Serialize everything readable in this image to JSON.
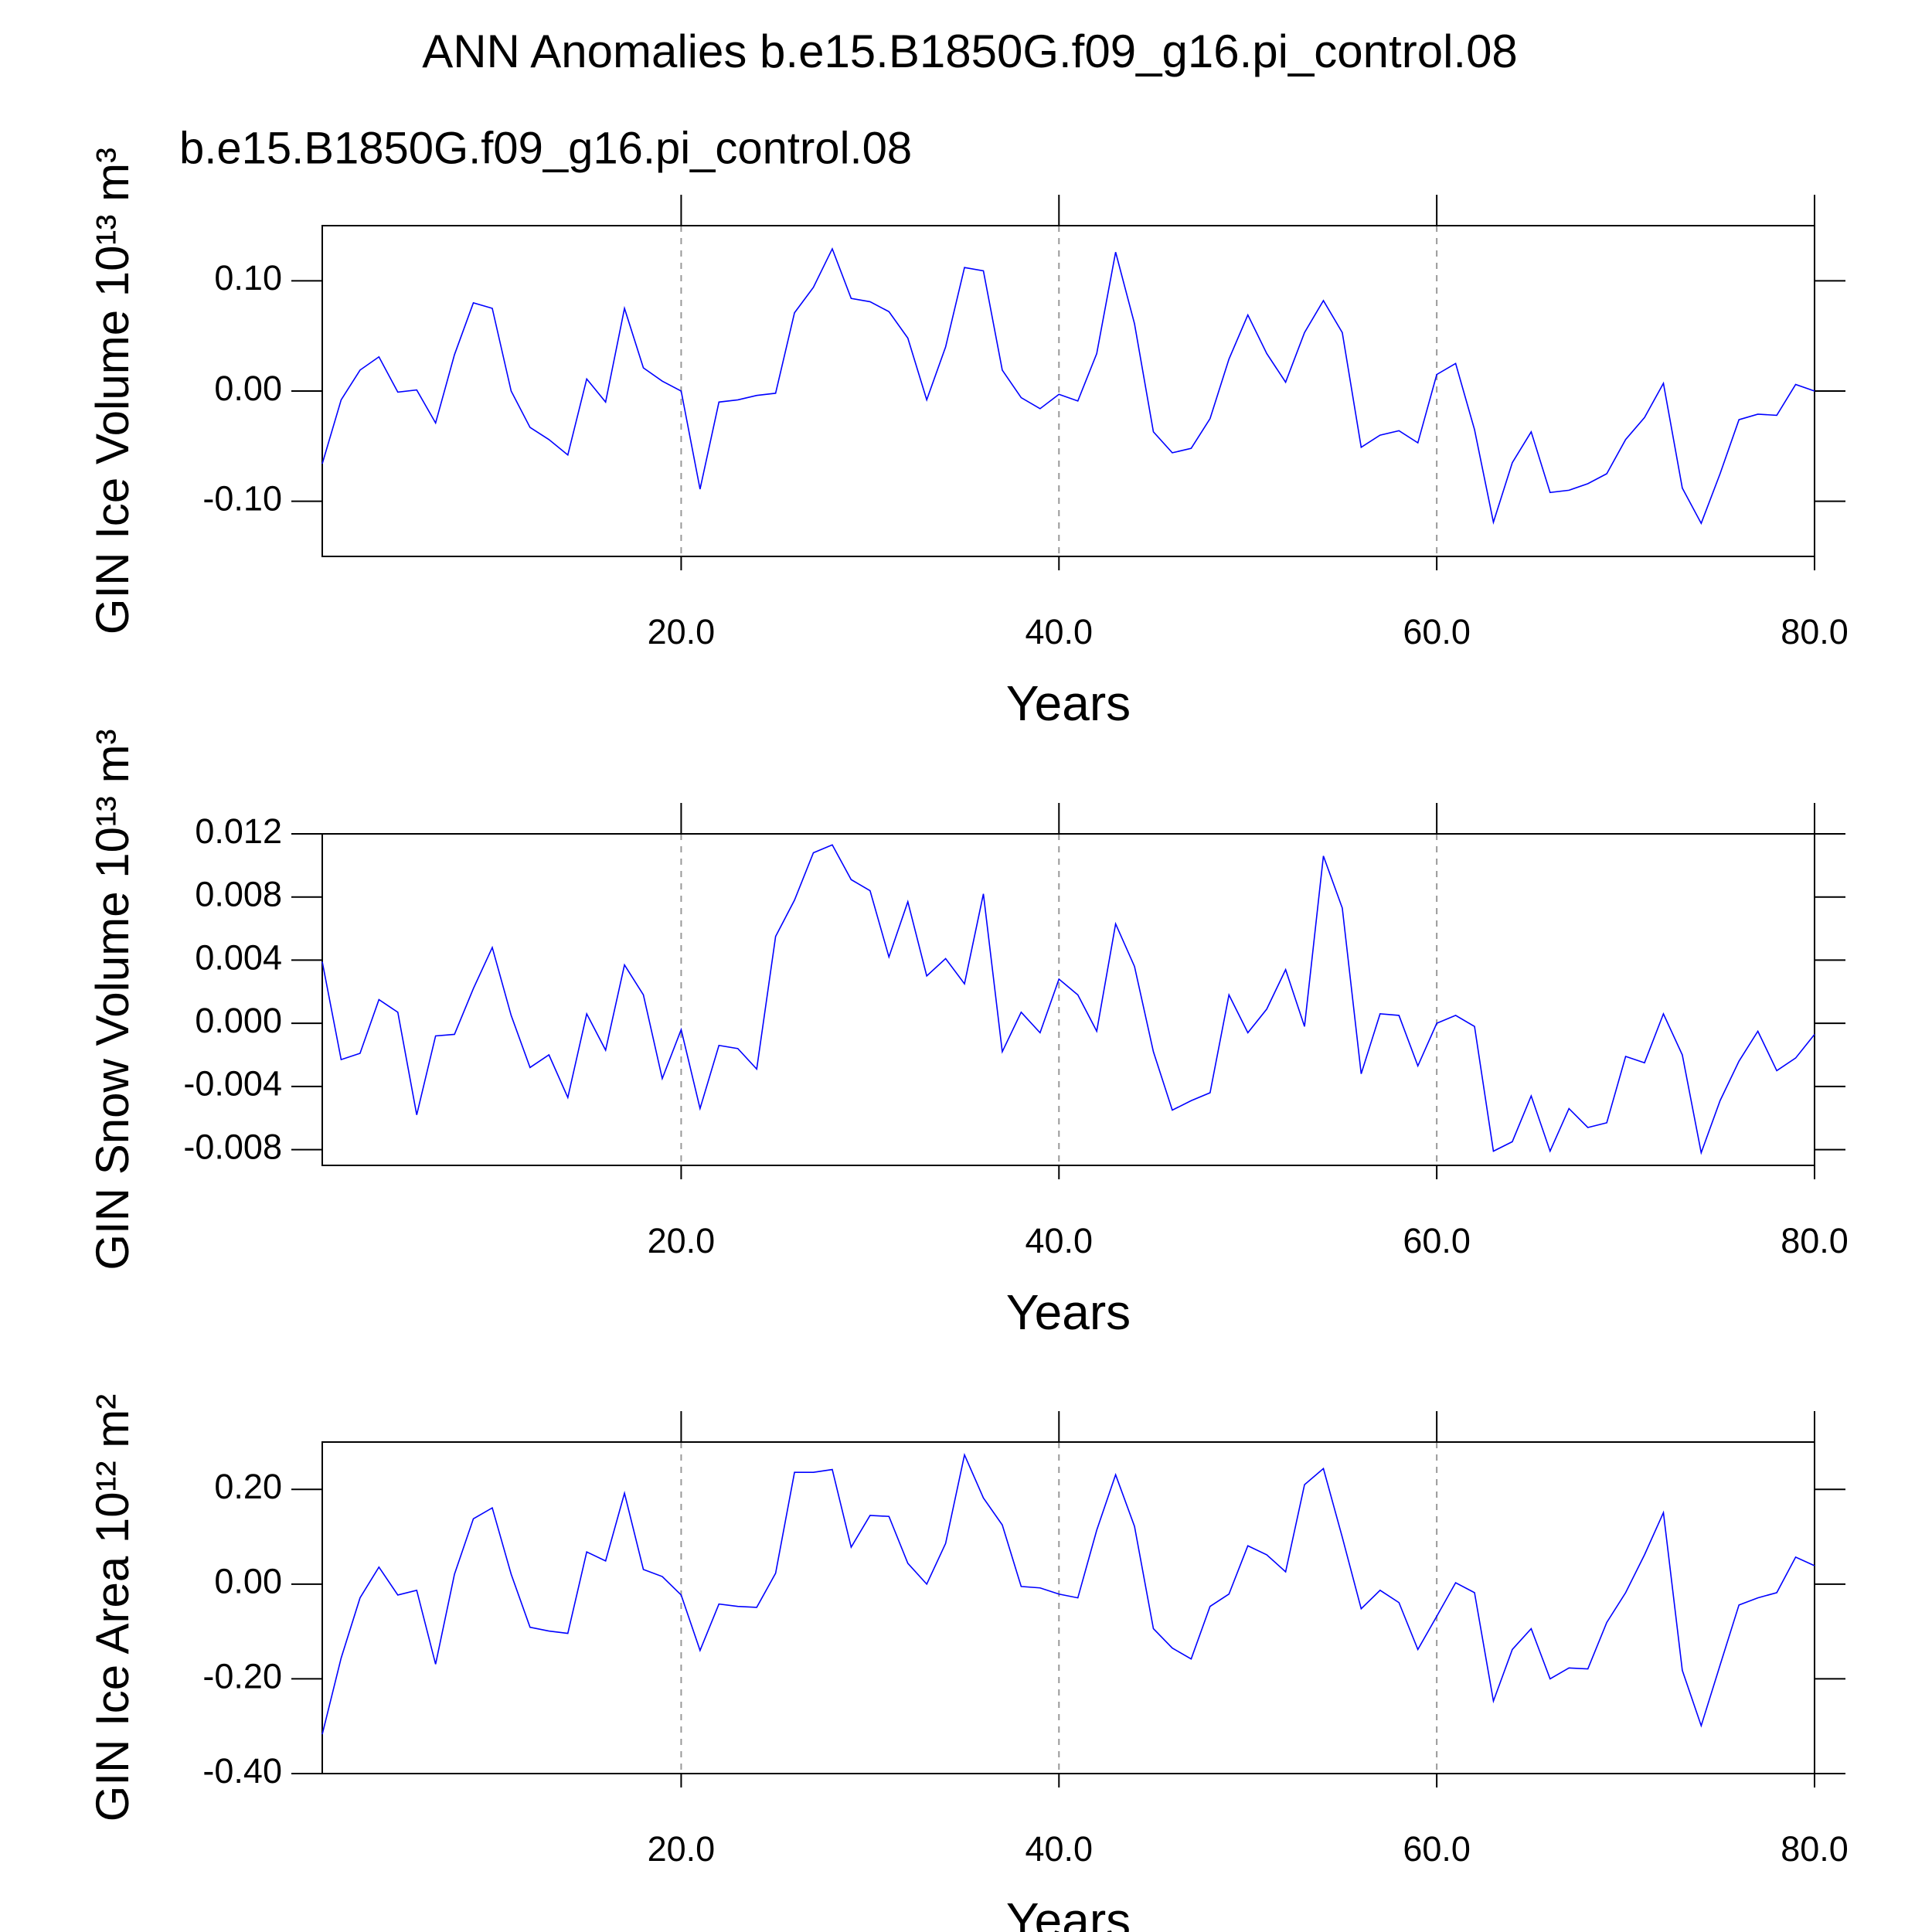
{
  "chart_data": [
    {
      "type": "line",
      "title": "ANN Anomalies b.e15.B1850G.f09_g16.pi_control.08",
      "subtitle": "b.e15.B1850G.f09_g16.pi_control.08",
      "subtitle_color": "#0000ff",
      "ylabel": "GIN Ice Volume 10¹³ m³",
      "xlabel": "Years",
      "color": "#0000ff",
      "xgrid": true,
      "xlim": [
        1,
        80
      ],
      "xticks": [
        {
          "value": 20,
          "label": "20.0"
        },
        {
          "value": 40,
          "label": "40.0"
        },
        {
          "value": 60,
          "label": "60.0"
        },
        {
          "value": 80,
          "label": "80.0"
        }
      ],
      "ylim": [
        -0.15,
        0.15
      ],
      "yticks": [
        {
          "value": -0.1,
          "label": "-0.10"
        },
        {
          "value": 0,
          "label": "0.00"
        },
        {
          "value": 0.1,
          "label": "0.10"
        }
      ],
      "x": [
        1,
        2,
        3,
        4,
        5,
        6,
        7,
        8,
        9,
        10,
        11,
        12,
        13,
        14,
        15,
        16,
        17,
        18,
        19,
        20,
        21,
        22,
        23,
        24,
        25,
        26,
        27,
        28,
        29,
        30,
        31,
        32,
        33,
        34,
        35,
        36,
        37,
        38,
        39,
        40,
        41,
        42,
        43,
        44,
        45,
        46,
        47,
        48,
        49,
        50,
        51,
        52,
        53,
        54,
        55,
        56,
        57,
        58,
        59,
        60,
        61,
        62,
        63,
        64,
        65,
        66,
        67,
        68,
        69,
        70,
        71,
        72,
        73,
        74,
        75,
        76,
        77,
        78,
        79,
        80
      ],
      "values": [
        -0.066,
        -0.008,
        0.019,
        0.031,
        -0.001,
        0.001,
        -0.029,
        0.033,
        0.08,
        0.075,
        0.0,
        -0.033,
        -0.044,
        -0.058,
        0.011,
        -0.01,
        0.075,
        0.021,
        0.009,
        0.0,
        -0.089,
        -0.01,
        -0.008,
        -0.004,
        -0.002,
        0.071,
        0.094,
        0.129,
        0.084,
        0.081,
        0.072,
        0.048,
        -0.008,
        0.04,
        0.112,
        0.109,
        0.019,
        -0.006,
        -0.016,
        -0.003,
        -0.009,
        0.034,
        0.126,
        0.061,
        -0.037,
        -0.056,
        -0.052,
        -0.025,
        0.029,
        0.069,
        0.034,
        0.008,
        0.053,
        0.082,
        0.053,
        -0.051,
        -0.04,
        -0.036,
        -0.047,
        0.015,
        0.025,
        -0.035,
        -0.119,
        -0.065,
        -0.037,
        -0.092,
        -0.09,
        -0.084,
        -0.075,
        -0.044,
        -0.024,
        0.007,
        -0.088,
        -0.12,
        -0.075,
        -0.026,
        -0.021,
        -0.022,
        0.006,
        0.0
      ]
    },
    {
      "type": "line",
      "ylabel": "GIN Snow Volume 10¹³ m³",
      "xlabel": "Years",
      "color": "#0000ff",
      "xgrid": true,
      "xlim": [
        1,
        80
      ],
      "xticks": [
        {
          "value": 20,
          "label": "20.0"
        },
        {
          "value": 40,
          "label": "40.0"
        },
        {
          "value": 60,
          "label": "60.0"
        },
        {
          "value": 80,
          "label": "80.0"
        }
      ],
      "ylim": [
        -0.009,
        0.012
      ],
      "yticks": [
        {
          "value": -0.008,
          "label": "-0.008"
        },
        {
          "value": -0.004,
          "label": "-0.004"
        },
        {
          "value": 0,
          "label": "0.000"
        },
        {
          "value": 0.004,
          "label": "0.004"
        },
        {
          "value": 0.008,
          "label": "0.008"
        },
        {
          "value": 0.012,
          "label": "0.012"
        }
      ],
      "x": [
        1,
        2,
        3,
        4,
        5,
        6,
        7,
        8,
        9,
        10,
        11,
        12,
        13,
        14,
        15,
        16,
        17,
        18,
        19,
        20,
        21,
        22,
        23,
        24,
        25,
        26,
        27,
        28,
        29,
        30,
        31,
        32,
        33,
        34,
        35,
        36,
        37,
        38,
        39,
        40,
        41,
        42,
        43,
        44,
        45,
        46,
        47,
        48,
        49,
        50,
        51,
        52,
        53,
        54,
        55,
        56,
        57,
        58,
        59,
        60,
        61,
        62,
        63,
        64,
        65,
        66,
        67,
        68,
        69,
        70,
        71,
        72,
        73,
        74,
        75,
        76,
        77,
        78,
        79,
        80
      ],
      "values": [
        0.0039,
        -0.0023,
        -0.0019,
        0.0015,
        0.0007,
        -0.0058,
        -0.0008,
        -0.0007,
        0.0022,
        0.0048,
        0.0005,
        -0.0028,
        -0.002,
        -0.0047,
        0.0006,
        -0.0017,
        0.0037,
        0.0018,
        -0.0035,
        -0.0004,
        -0.0054,
        -0.0014,
        -0.0016,
        -0.0029,
        0.0055,
        0.0078,
        0.0108,
        0.0113,
        0.0091,
        0.0084,
        0.0042,
        0.0077,
        0.003,
        0.0041,
        0.0025,
        0.0082,
        -0.0018,
        0.0007,
        -0.0006,
        0.0028,
        0.0018,
        -0.0005,
        0.0063,
        0.0036,
        -0.0018,
        -0.0055,
        -0.0049,
        -0.0044,
        0.0018,
        -0.0006,
        0.0009,
        0.0034,
        -0.0002,
        0.0106,
        0.0073,
        -0.0032,
        0.0006,
        0.0005,
        -0.0027,
        0.0,
        0.0005,
        -0.0002,
        -0.0081,
        -0.0075,
        -0.0046,
        -0.0081,
        -0.0054,
        -0.0066,
        -0.0063,
        -0.0021,
        -0.0025,
        0.0006,
        -0.002,
        -0.0082,
        -0.0049,
        -0.0024,
        -0.0005,
        -0.003,
        -0.0022,
        -0.0007
      ]
    },
    {
      "type": "line",
      "ylabel": "GIN Ice Area 10¹² m²",
      "xlabel": "Years",
      "color": "#0000ff",
      "xgrid": true,
      "xlim": [
        1,
        80
      ],
      "xticks": [
        {
          "value": 20,
          "label": "20.0"
        },
        {
          "value": 40,
          "label": "40.0"
        },
        {
          "value": 60,
          "label": "60.0"
        },
        {
          "value": 80,
          "label": "80.0"
        }
      ],
      "ylim": [
        -0.4,
        0.3
      ],
      "yticks": [
        {
          "value": -0.4,
          "label": "-0.40"
        },
        {
          "value": -0.2,
          "label": "-0.20"
        },
        {
          "value": 0,
          "label": "0.00"
        },
        {
          "value": 0.2,
          "label": "0.20"
        }
      ],
      "x": [
        1,
        2,
        3,
        4,
        5,
        6,
        7,
        8,
        9,
        10,
        11,
        12,
        13,
        14,
        15,
        16,
        17,
        18,
        19,
        20,
        21,
        22,
        23,
        24,
        25,
        26,
        27,
        28,
        29,
        30,
        31,
        32,
        33,
        34,
        35,
        36,
        37,
        38,
        39,
        40,
        41,
        42,
        43,
        44,
        45,
        46,
        47,
        48,
        49,
        50,
        51,
        52,
        53,
        54,
        55,
        56,
        57,
        58,
        59,
        60,
        61,
        62,
        63,
        64,
        65,
        66,
        67,
        68,
        69,
        70,
        71,
        72,
        73,
        74,
        75,
        76,
        77,
        78,
        79,
        80
      ],
      "values": [
        -0.317,
        -0.156,
        -0.029,
        0.036,
        -0.023,
        -0.013,
        -0.169,
        0.021,
        0.138,
        0.161,
        0.021,
        -0.091,
        -0.099,
        -0.104,
        0.068,
        0.049,
        0.192,
        0.031,
        0.016,
        -0.023,
        -0.14,
        -0.042,
        -0.047,
        -0.049,
        0.023,
        0.236,
        0.236,
        0.242,
        0.078,
        0.145,
        0.143,
        0.044,
        0.0,
        0.086,
        0.273,
        0.182,
        0.125,
        -0.005,
        -0.008,
        -0.021,
        -0.029,
        0.114,
        0.231,
        0.122,
        -0.094,
        -0.135,
        -0.158,
        -0.047,
        -0.021,
        0.081,
        0.062,
        0.026,
        0.21,
        0.244,
        0.099,
        -0.052,
        -0.013,
        -0.039,
        -0.138,
        -0.068,
        0.003,
        -0.018,
        -0.247,
        -0.138,
        -0.094,
        -0.2,
        -0.177,
        -0.179,
        -0.081,
        -0.018,
        0.062,
        0.151,
        -0.182,
        -0.299,
        -0.171,
        -0.044,
        -0.029,
        -0.018,
        0.057,
        0.039
      ]
    }
  ]
}
